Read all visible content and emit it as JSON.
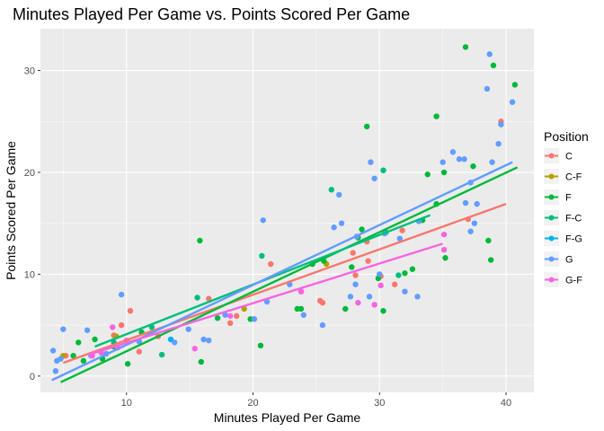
{
  "chart_data": {
    "type": "scatter",
    "title": "Minutes Played Per Game vs. Points Scored Per Game",
    "xlabel": "Minutes Played Per Game",
    "ylabel": "Points Scored Per Game",
    "xlim": [
      3.2,
      42.2
    ],
    "ylim": [
      -1.6,
      34.1
    ],
    "x_ticks": [
      10,
      20,
      30,
      40
    ],
    "y_ticks": [
      0,
      10,
      20,
      30
    ],
    "grid": true,
    "legend": {
      "title": "Position",
      "placement": "right"
    },
    "colors": {
      "C": "#F8766D",
      "C-F": "#B79F00",
      "F": "#00BA38",
      "F-C": "#00BF7D",
      "F-G": "#00B4EF",
      "G": "#619CFF",
      "G-F": "#F564E3"
    },
    "series": [
      {
        "name": "C",
        "points": [
          [
            5.2,
            2.0
          ],
          [
            9.0,
            4.0
          ],
          [
            9.6,
            5.0
          ],
          [
            10.3,
            6.4
          ],
          [
            11.0,
            2.4
          ],
          [
            12.5,
            3.9
          ],
          [
            16.5,
            7.6
          ],
          [
            18.2,
            5.2
          ],
          [
            18.7,
            5.9
          ],
          [
            21.4,
            11.0
          ],
          [
            23.8,
            8.3
          ],
          [
            25.3,
            7.4
          ],
          [
            25.5,
            7.2
          ],
          [
            27.9,
            12.1
          ],
          [
            28.1,
            9.9
          ],
          [
            29.0,
            13.2
          ],
          [
            29.1,
            11.3
          ],
          [
            30.1,
            9.8
          ],
          [
            31.2,
            9.0
          ],
          [
            31.8,
            14.3
          ],
          [
            37.0,
            15.4
          ],
          [
            39.6,
            25.0
          ]
        ],
        "fit": [
          [
            5.0,
            1.3
          ],
          [
            40.0,
            16.9
          ]
        ]
      },
      {
        "name": "C-F",
        "points": [
          [
            5.0,
            2.0
          ],
          [
            9.2,
            3.9
          ],
          [
            19.3,
            6.6
          ],
          [
            25.8,
            11.0
          ]
        ],
        "fit": []
      },
      {
        "name": "F",
        "points": [
          [
            5.8,
            2.0
          ],
          [
            6.2,
            3.3
          ],
          [
            6.6,
            1.5
          ],
          [
            7.5,
            3.6
          ],
          [
            8.1,
            1.7
          ],
          [
            9.0,
            2.9
          ],
          [
            10.1,
            1.2
          ],
          [
            11.2,
            4.3
          ],
          [
            11.9,
            4.2
          ],
          [
            15.8,
            13.3
          ],
          [
            15.9,
            1.4
          ],
          [
            17.2,
            5.7
          ],
          [
            19.8,
            5.6
          ],
          [
            20.6,
            3.0
          ],
          [
            23.5,
            6.6
          ],
          [
            23.8,
            6.6
          ],
          [
            24.7,
            11.0
          ],
          [
            25.6,
            11.3
          ],
          [
            27.3,
            6.6
          ],
          [
            27.8,
            10.7
          ],
          [
            28.3,
            13.6
          ],
          [
            28.6,
            14.4
          ],
          [
            29.0,
            24.5
          ],
          [
            29.9,
            9.6
          ],
          [
            30.3,
            6.4
          ],
          [
            30.5,
            14.1
          ],
          [
            32.0,
            10.1
          ],
          [
            32.6,
            10.5
          ],
          [
            33.4,
            15.3
          ],
          [
            33.8,
            19.8
          ],
          [
            34.5,
            25.5
          ],
          [
            34.5,
            16.9
          ],
          [
            35.2,
            11.6
          ],
          [
            35.1,
            20.0
          ],
          [
            36.8,
            32.3
          ],
          [
            37.4,
            20.6
          ],
          [
            38.6,
            13.3
          ],
          [
            38.8,
            11.4
          ],
          [
            39.0,
            30.5
          ],
          [
            40.7,
            28.6
          ]
        ],
        "fit": [
          [
            4.8,
            -0.6
          ],
          [
            40.9,
            20.5
          ]
        ]
      },
      {
        "name": "F-C",
        "points": [
          [
            9.0,
            3.3
          ],
          [
            12.0,
            4.8
          ],
          [
            12.8,
            2.1
          ],
          [
            15.6,
            7.7
          ],
          [
            20.7,
            11.8
          ],
          [
            26.2,
            18.3
          ],
          [
            30.3,
            20.2
          ],
          [
            31.5,
            9.9
          ]
        ],
        "fit": [
          [
            7.5,
            2.9
          ],
          [
            34.0,
            15.8
          ]
        ]
      },
      {
        "name": "F-G",
        "points": [
          [
            13.5,
            3.6
          ]
        ],
        "fit": []
      },
      {
        "name": "G",
        "points": [
          [
            4.2,
            2.5
          ],
          [
            4.4,
            0.5
          ],
          [
            4.5,
            1.5
          ],
          [
            4.8,
            1.7
          ],
          [
            5.0,
            4.6
          ],
          [
            6.9,
            4.5
          ],
          [
            7.2,
            2.0
          ],
          [
            8.4,
            2.2
          ],
          [
            9.6,
            8.0
          ],
          [
            11.0,
            3.4
          ],
          [
            13.8,
            3.3
          ],
          [
            14.9,
            4.6
          ],
          [
            16.1,
            3.6
          ],
          [
            16.5,
            3.5
          ],
          [
            17.8,
            6.0
          ],
          [
            20.1,
            5.6
          ],
          [
            20.8,
            15.3
          ],
          [
            21.1,
            7.3
          ],
          [
            22.9,
            9.0
          ],
          [
            24.0,
            6.0
          ],
          [
            25.5,
            5.0
          ],
          [
            26.4,
            14.6
          ],
          [
            26.8,
            17.8
          ],
          [
            27.0,
            15.0
          ],
          [
            27.7,
            7.8
          ],
          [
            28.1,
            9.0
          ],
          [
            28.2,
            13.7
          ],
          [
            29.2,
            7.8
          ],
          [
            29.3,
            21.0
          ],
          [
            29.6,
            19.4
          ],
          [
            30.0,
            10.0
          ],
          [
            30.4,
            14.0
          ],
          [
            31.6,
            13.5
          ],
          [
            32.0,
            8.3
          ],
          [
            33.0,
            7.8
          ],
          [
            33.1,
            15.2
          ],
          [
            35.0,
            21.0
          ],
          [
            35.8,
            22.0
          ],
          [
            36.3,
            21.3
          ],
          [
            36.7,
            21.3
          ],
          [
            36.8,
            17.0
          ],
          [
            37.2,
            14.2
          ],
          [
            37.2,
            19.0
          ],
          [
            37.5,
            15.0
          ],
          [
            37.7,
            16.9
          ],
          [
            38.5,
            28.2
          ],
          [
            38.7,
            31.6
          ],
          [
            38.9,
            21.0
          ],
          [
            39.4,
            22.8
          ],
          [
            39.6,
            24.7
          ],
          [
            40.5,
            26.9
          ]
        ],
        "fit": [
          [
            4.1,
            -0.4
          ],
          [
            40.5,
            21.0
          ]
        ]
      },
      {
        "name": "G-F",
        "points": [
          [
            7.3,
            2.0
          ],
          [
            8.0,
            2.3
          ],
          [
            8.9,
            4.8
          ],
          [
            9.3,
            2.8
          ],
          [
            10.0,
            3.5
          ],
          [
            15.4,
            2.7
          ],
          [
            18.2,
            5.9
          ],
          [
            23.8,
            8.3
          ],
          [
            28.3,
            7.2
          ],
          [
            29.6,
            7.0
          ],
          [
            30.1,
            8.9
          ],
          [
            35.1,
            12.4
          ],
          [
            35.1,
            13.9
          ]
        ],
        "fit": [
          [
            7.0,
            2.1
          ],
          [
            35.0,
            13.0
          ]
        ]
      }
    ]
  }
}
